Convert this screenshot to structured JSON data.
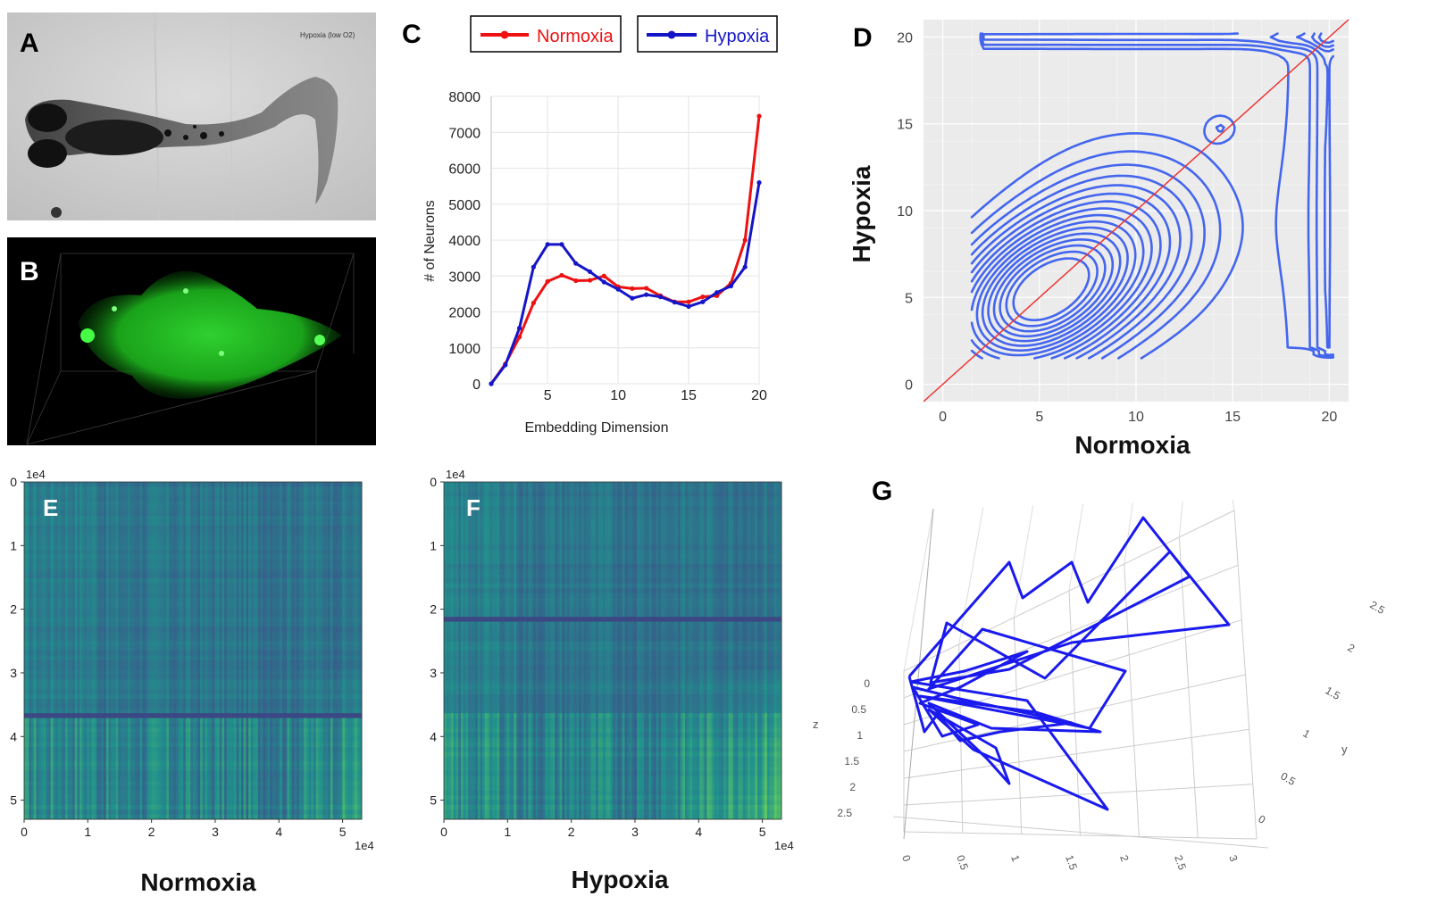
{
  "figure": {
    "panel_labels": {
      "a": "A",
      "b": "B",
      "c": "C",
      "d": "D",
      "e": "E",
      "f": "F",
      "g": "G"
    },
    "panel_a": {
      "caption": "Hypoxia (low O2)"
    }
  },
  "chart_data": [
    {
      "id": "C",
      "type": "line",
      "title": "",
      "xlabel": "Embedding Dimension",
      "ylabel": "# of Neurons",
      "xlim": [
        1,
        20
      ],
      "ylim": [
        0,
        8000
      ],
      "xticks": [
        5,
        10,
        15,
        20
      ],
      "yticks": [
        0,
        1000,
        2000,
        3000,
        4000,
        5000,
        6000,
        7000,
        8000
      ],
      "grid": true,
      "legend_position": "top",
      "x": [
        1,
        2,
        3,
        4,
        5,
        6,
        7,
        8,
        9,
        10,
        11,
        12,
        13,
        14,
        15,
        16,
        17,
        18,
        19,
        20
      ],
      "series": [
        {
          "name": "Normoxia",
          "color": "#ee1111",
          "values": [
            0,
            550,
            1300,
            2250,
            2850,
            3020,
            2870,
            2880,
            3000,
            2700,
            2650,
            2660,
            2450,
            2280,
            2280,
            2420,
            2450,
            2800,
            4000,
            7450
          ]
        },
        {
          "name": "Hypoxia",
          "color": "#1515c8",
          "values": [
            0,
            520,
            1550,
            3250,
            3880,
            3880,
            3350,
            3120,
            2830,
            2630,
            2380,
            2480,
            2420,
            2270,
            2150,
            2280,
            2540,
            2720,
            3250,
            5600
          ]
        }
      ]
    },
    {
      "id": "D",
      "type": "contour",
      "xlabel": "Normoxia",
      "ylabel": "Hypoxia",
      "xlim": [
        -1,
        21
      ],
      "ylim": [
        -1,
        21
      ],
      "xticks": [
        0,
        5,
        10,
        15,
        20
      ],
      "yticks": [
        0,
        5,
        10,
        15,
        20
      ],
      "background": "#ebebeb",
      "contour_color": "#4466ee",
      "density_peaks": [
        {
          "center": [
            5,
            5
          ],
          "sx": 3.2,
          "sy": 3.0,
          "rho": 0.35,
          "weight": 1.0
        },
        {
          "center": [
            9.5,
            8.5
          ],
          "sx": 3.5,
          "sy": 3.5,
          "rho": 0.1,
          "weight": 0.35
        },
        {
          "center": [
            14.4,
            14.8
          ],
          "sx": 0.6,
          "sy": 0.6,
          "rho": 0,
          "weight": 0.12
        }
      ],
      "levels": 16,
      "identity_line": {
        "from": [
          -1,
          -1
        ],
        "to": [
          21,
          21
        ],
        "color": "#ee3333"
      }
    },
    {
      "id": "E",
      "type": "heatmap",
      "caption": "Normoxia",
      "x_range": [
        0,
        5.3
      ],
      "y_range": [
        0,
        5.3
      ],
      "xticks": [
        0,
        1,
        2,
        3,
        4,
        5
      ],
      "yticks": [
        0,
        1,
        2,
        3,
        4,
        5
      ],
      "exponent_label": "1e4",
      "colormap": "viridis",
      "bright_region": "bottom-right"
    },
    {
      "id": "F",
      "type": "heatmap",
      "caption": "Hypoxia",
      "x_range": [
        0,
        5.3
      ],
      "y_range": [
        0,
        5.3
      ],
      "xticks": [
        0,
        1,
        2,
        3,
        4,
        5
      ],
      "yticks": [
        0,
        1,
        2,
        3,
        4,
        5
      ],
      "exponent_label": "1e4",
      "colormap": "viridis",
      "bright_region": "bottom-right"
    },
    {
      "id": "G",
      "type": "line3d",
      "x_axis": {
        "label": "",
        "ticks": [
          "0",
          "0.5",
          "1",
          "1.5",
          "2",
          "2.5",
          "3"
        ]
      },
      "y_axis": {
        "label": "y",
        "ticks": [
          "0",
          "0.5",
          "1",
          "1.5",
          "2",
          "2.5"
        ]
      },
      "z_axis": {
        "label": "z",
        "ticks": [
          "0",
          "0.5",
          "1",
          "1.5",
          "2",
          "2.5"
        ]
      },
      "line_color": "#1a1aee"
    }
  ]
}
